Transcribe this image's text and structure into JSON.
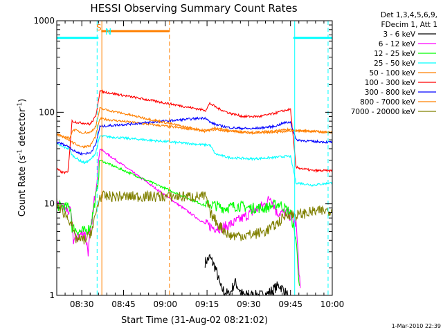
{
  "chart_data": {
    "type": "line",
    "title": "HESSI Observing Summary Count Rates",
    "xlabel": "Start Time (31-Aug-02 08:21:02)",
    "ylabel_main": "Count Rate (s",
    "ylabel_sup1": "-1",
    "ylabel_mid": " detector",
    "ylabel_sup2": "-1",
    "ylabel_end": ")",
    "y_scale": "log",
    "ylim": [
      1,
      1000
    ],
    "xlim_minutes": [
      0,
      99
    ],
    "x_ticks": [
      {
        "label": "08:30",
        "minute": 9
      },
      {
        "label": "08:45",
        "minute": 24
      },
      {
        "label": "09:00",
        "minute": 39
      },
      {
        "label": "09:15",
        "minute": 54
      },
      {
        "label": "09:30",
        "minute": 69
      },
      {
        "label": "09:45",
        "minute": 84
      },
      {
        "label": "10:00",
        "minute": 99
      }
    ],
    "y_ticks": [
      {
        "label": "1",
        "value": 1
      },
      {
        "label": "10",
        "value": 10
      },
      {
        "label": "100",
        "value": 100
      },
      {
        "label": "1000",
        "value": 1000
      }
    ],
    "legend_header": [
      "Det 1,3,4,5,6,9,",
      "FDecim 1, Att 1"
    ],
    "flag_labels": [
      {
        "text": "S",
        "color": "#ff8000"
      },
      {
        "text": "N",
        "color": "#00ffff"
      }
    ],
    "series": [
      {
        "name": "3 - 6 keV",
        "color": "#000000",
        "points": [
          [
            53.3,
            2.3
          ],
          [
            55,
            2.6
          ],
          [
            57,
            2.0
          ],
          [
            59,
            1.2
          ],
          [
            62,
            1.0
          ],
          [
            64,
            1.4
          ],
          [
            67,
            1.0
          ],
          [
            75,
            1.0
          ],
          [
            80,
            1.3
          ],
          [
            83,
            1.0
          ]
        ]
      },
      {
        "name": "6 - 12 keV",
        "color": "#ff00ff",
        "points": [
          [
            0,
            9.2
          ],
          [
            2.5,
            9.0
          ],
          [
            5,
            8.0
          ],
          [
            6,
            4.0
          ],
          [
            10,
            5.0
          ],
          [
            11.3,
            3.0
          ],
          [
            12.5,
            6.0
          ],
          [
            14.5,
            20
          ],
          [
            15.5,
            40
          ],
          [
            53.5,
            6.0
          ],
          [
            56,
            5.5
          ],
          [
            60,
            5.5
          ],
          [
            65,
            6.5
          ],
          [
            70,
            8.0
          ],
          [
            75,
            10
          ],
          [
            77,
            12
          ],
          [
            79,
            8.0
          ],
          [
            83,
            8.0
          ],
          [
            86,
            6.0
          ],
          [
            87.5,
            1.2
          ]
        ]
      },
      {
        "name": "12 - 25 keV",
        "color": "#00ff00",
        "points": [
          [
            0,
            9.5
          ],
          [
            2.5,
            9.3
          ],
          [
            5,
            9.0
          ],
          [
            5.5,
            5.5
          ],
          [
            8,
            5.0
          ],
          [
            10,
            5.0
          ],
          [
            12,
            5.5
          ],
          [
            14.5,
            14
          ],
          [
            15.5,
            30
          ],
          [
            53.5,
            9.5
          ],
          [
            55,
            10
          ],
          [
            60,
            9.0
          ],
          [
            65,
            9.5
          ],
          [
            70,
            9.0
          ],
          [
            75,
            9.0
          ],
          [
            80,
            10
          ],
          [
            84,
            8.0
          ],
          [
            86,
            4.0
          ],
          [
            87.2,
            1.3
          ]
        ]
      },
      {
        "name": "25 - 50 keV",
        "color": "#00ffff",
        "points": [
          [
            0,
            45
          ],
          [
            2,
            42
          ],
          [
            4.5,
            40
          ],
          [
            5.5,
            34
          ],
          [
            8,
            30
          ],
          [
            10,
            28
          ],
          [
            12,
            30
          ],
          [
            14,
            36
          ],
          [
            15.5,
            55
          ],
          [
            53.5,
            44
          ],
          [
            55,
            44
          ],
          [
            57,
            35
          ],
          [
            62,
            32
          ],
          [
            70,
            31
          ],
          [
            78,
            32
          ],
          [
            82,
            33
          ],
          [
            84,
            33
          ],
          [
            86,
            17
          ],
          [
            92,
            16
          ],
          [
            99,
            17
          ]
        ]
      },
      {
        "name": "50 - 100 keV",
        "color": "#ff8000",
        "points": [
          [
            0,
            57
          ],
          [
            2,
            54
          ],
          [
            4.5,
            50
          ],
          [
            6,
            46
          ],
          [
            9,
            42
          ],
          [
            12,
            43
          ],
          [
            14,
            55
          ],
          [
            15.5,
            85
          ],
          [
            53.5,
            63
          ],
          [
            57,
            65
          ],
          [
            62,
            62
          ],
          [
            70,
            60
          ],
          [
            78,
            60
          ],
          [
            82,
            62
          ],
          [
            84,
            62
          ],
          [
            86,
            63
          ],
          [
            92,
            62
          ],
          [
            99,
            60
          ]
        ]
      },
      {
        "name": "100 - 300 keV",
        "color": "#ff0000",
        "points": [
          [
            0,
            24
          ],
          [
            2,
            22
          ],
          [
            4,
            22
          ],
          [
            5.5,
            80
          ],
          [
            8,
            77
          ],
          [
            10,
            76
          ],
          [
            12,
            74
          ],
          [
            14,
            90
          ],
          [
            15.5,
            170
          ],
          [
            53.5,
            105
          ],
          [
            55,
            125
          ],
          [
            58,
            110
          ],
          [
            62,
            98
          ],
          [
            67,
            90
          ],
          [
            73,
            90
          ],
          [
            78,
            97
          ],
          [
            81,
            103
          ],
          [
            84,
            108
          ],
          [
            86,
            25
          ],
          [
            92,
            23
          ],
          [
            99,
            23
          ]
        ]
      },
      {
        "name": "300 - 800 keV",
        "color": "#0000ff",
        "points": [
          [
            0,
            47
          ],
          [
            2,
            45
          ],
          [
            4.5,
            42
          ],
          [
            6,
            38
          ],
          [
            9,
            35
          ],
          [
            12,
            36
          ],
          [
            14,
            44
          ],
          [
            15.5,
            70
          ],
          [
            53.5,
            87
          ],
          [
            55,
            78
          ],
          [
            58,
            72
          ],
          [
            62,
            68
          ],
          [
            70,
            66
          ],
          [
            78,
            70
          ],
          [
            82,
            77
          ],
          [
            84,
            78
          ],
          [
            86,
            50
          ],
          [
            92,
            48
          ],
          [
            99,
            47
          ]
        ]
      },
      {
        "name": "800 - 7000 keV",
        "color": "#ff8000",
        "points": [
          [
            0,
            57
          ],
          [
            2.5,
            54
          ],
          [
            4.5,
            52
          ],
          [
            6,
            65
          ],
          [
            9,
            60
          ],
          [
            12,
            60
          ],
          [
            14,
            70
          ],
          [
            15.5,
            110
          ],
          [
            53.5,
            62
          ],
          [
            57,
            68
          ],
          [
            62,
            63
          ],
          [
            70,
            60
          ],
          [
            78,
            62
          ],
          [
            82,
            64
          ],
          [
            84,
            65
          ],
          [
            86,
            63
          ],
          [
            92,
            62
          ],
          [
            99,
            60
          ]
        ]
      },
      {
        "name": "7000 - 20000 keV",
        "color": "#808000",
        "points": [
          [
            0,
            10
          ],
          [
            2.5,
            8.0
          ],
          [
            5,
            6.5
          ],
          [
            6.5,
            4.2
          ],
          [
            9,
            4.0
          ],
          [
            11,
            4.2
          ],
          [
            13,
            5.5
          ],
          [
            14.5,
            9.0
          ],
          [
            15.5,
            12
          ],
          [
            53.5,
            12
          ],
          [
            55,
            8.0
          ],
          [
            58,
            6.0
          ],
          [
            62,
            4.5
          ],
          [
            66,
            4.5
          ],
          [
            70,
            4.6
          ],
          [
            75,
            5.0
          ],
          [
            79,
            6.0
          ],
          [
            83,
            7.8
          ],
          [
            86,
            7.5
          ],
          [
            92,
            8.2
          ],
          [
            99,
            8.5
          ]
        ]
      }
    ],
    "flag_bars": [
      {
        "color": "#00ffff",
        "value": 650,
        "segments": [
          [
            0,
            15
          ],
          [
            85,
            99
          ]
        ]
      },
      {
        "color": "#ff8000",
        "value": 770,
        "segments": [
          [
            16,
            40.5
          ]
        ]
      }
    ],
    "event_lines": [
      {
        "color": "#00ffff",
        "style": "dashed",
        "minute": 14.5
      },
      {
        "color": "#ff8000",
        "style": "solid",
        "minute": 16.2
      },
      {
        "color": "#ff8000",
        "style": "dashed",
        "minute": 40.5
      },
      {
        "color": "#00ffff",
        "style": "solid",
        "minute": 85.5
      },
      {
        "color": "#00ffff",
        "style": "dashed",
        "minute": 97.5
      }
    ],
    "timestamp": "1-Mar-2010 22:39"
  }
}
